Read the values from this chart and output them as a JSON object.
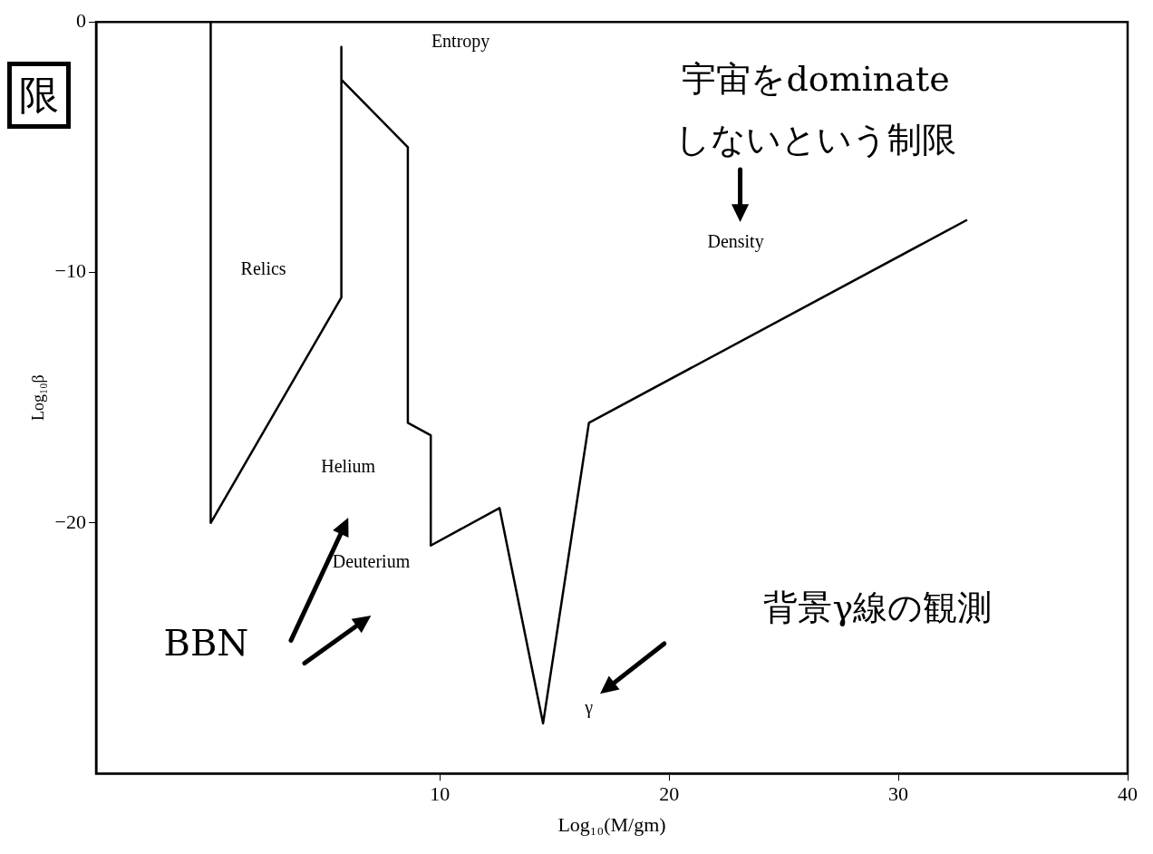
{
  "chart_data": {
    "type": "line",
    "title": "限",
    "xlabel": "Log₁₀(M/gm)",
    "ylabel": "Log₁₀β",
    "xlim": [
      -5,
      40
    ],
    "xticks": [
      10,
      20,
      30,
      40
    ],
    "ylim": [
      -30,
      0
    ],
    "yticks": [
      -20,
      -10,
      0
    ],
    "grid": false,
    "legend": false,
    "marker": "none",
    "line_style": "solid",
    "series": [
      {
        "color": "#000000",
        "x": [
          0,
          0,
          5.7,
          5.7,
          5.7,
          8.6,
          8.6,
          9.6,
          9.6,
          12.6,
          14.5,
          16.5,
          33
        ],
        "values": [
          0,
          -20,
          -11,
          -1,
          -2.3,
          -5,
          -16,
          -16.5,
          -20.9,
          -19.4,
          -28,
          -16,
          -7.9
        ]
      }
    ],
    "annotations": [
      "Relics",
      "Entropy",
      "Density",
      "Helium",
      "Deuterium",
      "γ",
      "宇宙をdominate\nしないという制限",
      "背景γ線の観測",
      "BBN"
    ]
  }
}
